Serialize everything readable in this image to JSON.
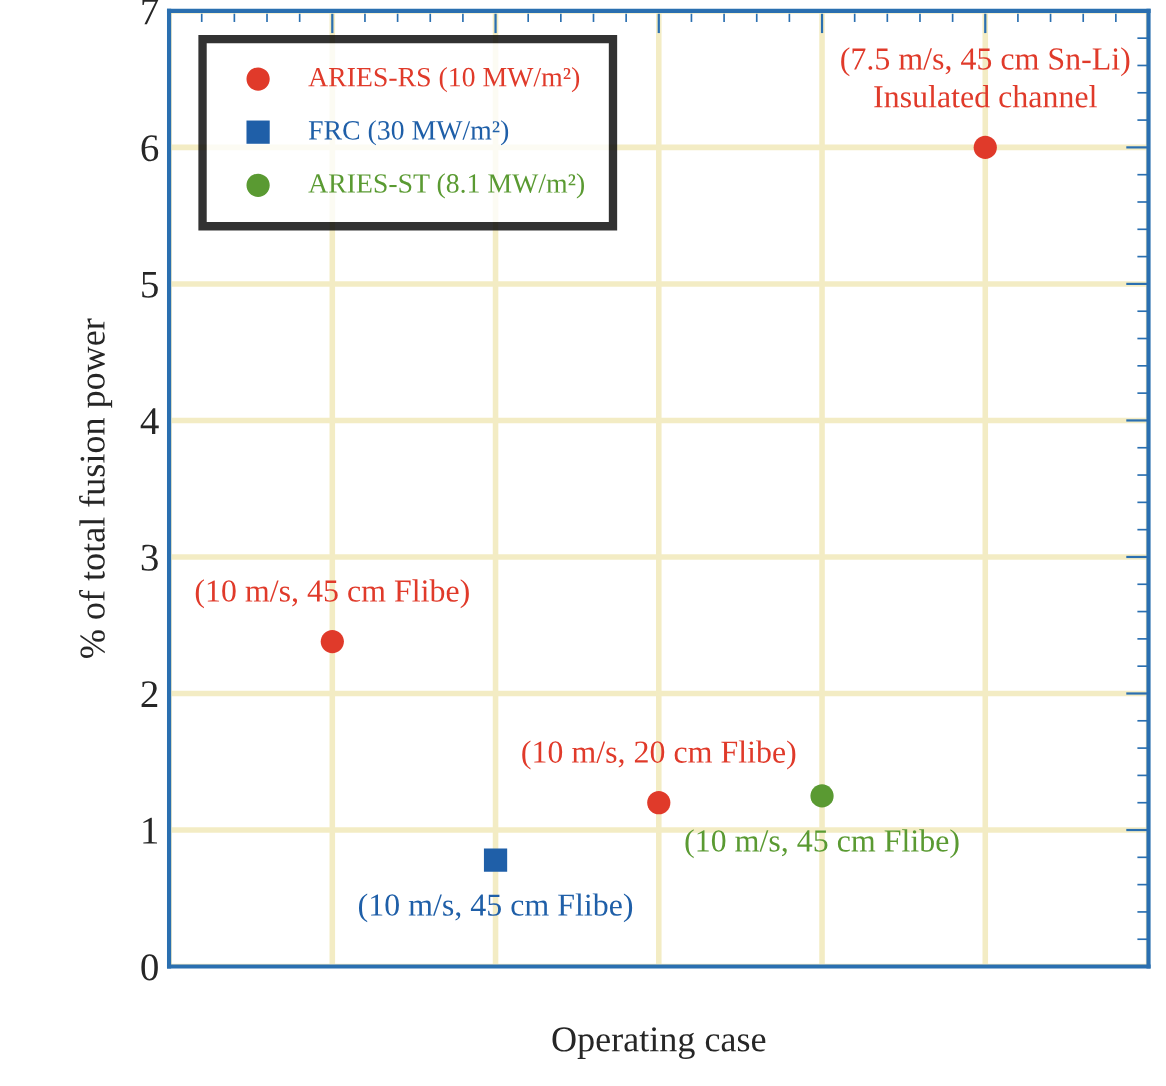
{
  "chart_data": {
    "type": "scatter",
    "xlabel": "Operating case",
    "ylabel": "% of total fusion power",
    "categories": [
      null,
      null,
      null,
      null,
      null,
      null,
      null
    ],
    "series": [
      {
        "name": "ARIES-RS (10 MW/m²)",
        "color": "#e03a2a",
        "marker": "circle",
        "values": [
          null,
          2.38,
          null,
          1.2,
          null,
          6.0,
          null
        ],
        "value_labels": [
          null,
          "(10 m/s, 45 cm Flibe)",
          null,
          "(10 m/s, 20 cm Flibe)",
          null,
          "(7.5 m/s, 45 cm Sn-Li)\nInsulated channel",
          null
        ]
      },
      {
        "name": "FRC (30 MW/m²)",
        "color": "#1f5fa8",
        "marker": "square",
        "values": [
          null,
          null,
          0.78,
          null,
          null,
          null,
          null
        ],
        "value_labels": [
          null,
          null,
          "(10 m/s, 45 cm Flibe)",
          null,
          null,
          null,
          null
        ]
      },
      {
        "name": "ARIES-ST (8.1 MW/m²)",
        "color": "#5a9a32",
        "marker": "circle",
        "values": [
          null,
          null,
          null,
          null,
          1.25,
          null,
          null
        ],
        "value_labels": [
          null,
          null,
          null,
          null,
          "(10 m/s, 45 cm Flibe)",
          null,
          null
        ]
      }
    ],
    "ylim": [
      0,
      7
    ],
    "yticks": [
      0,
      1,
      2,
      3,
      4,
      5,
      6,
      7
    ],
    "grid": true,
    "legend": "top left"
  }
}
